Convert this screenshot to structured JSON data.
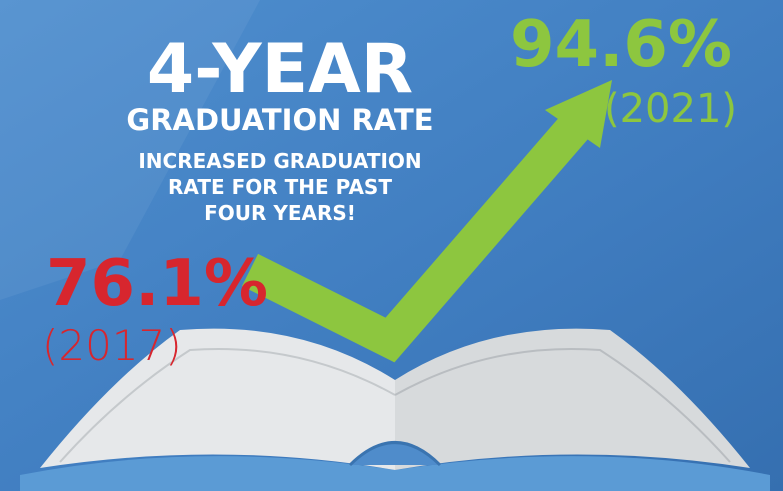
{
  "title": {
    "main": "4-YEAR",
    "sub": "GRADUATION RATE"
  },
  "note": {
    "lines": [
      "INCREASED GRADUATION",
      "RATE FOR THE PAST",
      "FOUR YEARS!"
    ]
  },
  "start": {
    "rate": "76.1%",
    "year": "(2017)"
  },
  "end": {
    "rate": "94.6%",
    "year": "(2021)"
  }
}
